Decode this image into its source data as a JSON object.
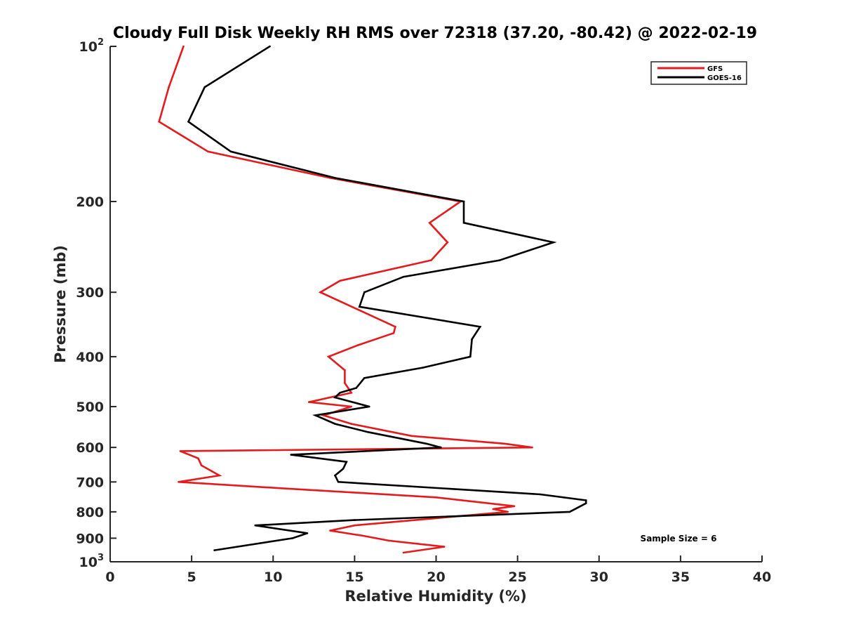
{
  "chart_data": {
    "type": "line",
    "title": "Cloudy Full Disk Weekly RH RMS over 72318 (37.20, -80.42) @ 2022-02-19",
    "xlabel": "Relative Humidity (%)",
    "ylabel": "Pressure (mb)",
    "xlim": [
      0,
      40
    ],
    "ylim": [
      100,
      1000
    ],
    "y_scale": "log",
    "y_reversed": true,
    "x_ticks": [
      "0",
      "5",
      "10",
      "15",
      "20",
      "25",
      "30",
      "35",
      "40"
    ],
    "y_ticks": [
      {
        "value": 100,
        "base": "10",
        "exp": "2"
      },
      {
        "value": 200,
        "label": "200"
      },
      {
        "value": 300,
        "label": "300"
      },
      {
        "value": 400,
        "label": "400"
      },
      {
        "value": 500,
        "label": "500"
      },
      {
        "value": 600,
        "label": "600"
      },
      {
        "value": 700,
        "label": "700"
      },
      {
        "value": 800,
        "label": "800"
      },
      {
        "value": 900,
        "label": "900"
      },
      {
        "value": 1000,
        "base": "10",
        "exp": "3"
      }
    ],
    "legend_position": "top-right",
    "annotation": "Sample Size = 6",
    "series": [
      {
        "name": "GFS",
        "color": "#e41a1c",
        "points": [
          [
            4.5,
            100
          ],
          [
            3.6,
            120
          ],
          [
            3.0,
            140
          ],
          [
            6.0,
            160
          ],
          [
            13.5,
            180
          ],
          [
            21.5,
            200
          ],
          [
            19.6,
            220
          ],
          [
            20.7,
            240
          ],
          [
            19.7,
            260
          ],
          [
            14.1,
            285
          ],
          [
            12.9,
            300
          ],
          [
            17.5,
            350
          ],
          [
            17.4,
            360
          ],
          [
            15.2,
            380
          ],
          [
            13.4,
            400
          ],
          [
            14.4,
            425
          ],
          [
            14.4,
            450
          ],
          [
            14.8,
            470
          ],
          [
            12.2,
            490
          ],
          [
            14.8,
            500
          ],
          [
            13.1,
            520
          ],
          [
            14.8,
            540
          ],
          [
            18.5,
            570
          ],
          [
            24.2,
            590
          ],
          [
            25.9,
            600
          ],
          [
            4.3,
            610
          ],
          [
            5.4,
            630
          ],
          [
            5.6,
            650
          ],
          [
            6.7,
            680
          ],
          [
            4.2,
            700
          ],
          [
            10.5,
            720
          ],
          [
            20.0,
            750
          ],
          [
            24.8,
            780
          ],
          [
            23.5,
            790
          ],
          [
            24.4,
            800
          ],
          [
            15.0,
            850
          ],
          [
            13.5,
            870
          ],
          [
            15.5,
            890
          ],
          [
            17.1,
            910
          ],
          [
            20.5,
            935
          ],
          [
            18.0,
            960
          ]
        ]
      },
      {
        "name": "GOES-16",
        "color": "#000000",
        "points": [
          [
            9.8,
            100
          ],
          [
            5.8,
            120
          ],
          [
            4.8,
            140
          ],
          [
            7.4,
            160
          ],
          [
            13.8,
            180
          ],
          [
            21.7,
            200
          ],
          [
            21.7,
            220
          ],
          [
            27.2,
            240
          ],
          [
            23.9,
            260
          ],
          [
            18.0,
            280
          ],
          [
            15.6,
            300
          ],
          [
            15.3,
            320
          ],
          [
            22.7,
            350
          ],
          [
            22.2,
            370
          ],
          [
            22.1,
            400
          ],
          [
            19.2,
            420
          ],
          [
            15.6,
            440
          ],
          [
            15.1,
            460
          ],
          [
            14.1,
            470
          ],
          [
            13.8,
            480
          ],
          [
            15.9,
            500
          ],
          [
            12.6,
            520
          ],
          [
            13.8,
            540
          ],
          [
            15.8,
            560
          ],
          [
            19.4,
            590
          ],
          [
            20.3,
            600
          ],
          [
            11.1,
            620
          ],
          [
            14.5,
            640
          ],
          [
            14.3,
            660
          ],
          [
            13.8,
            680
          ],
          [
            14.0,
            700
          ],
          [
            26.4,
            740
          ],
          [
            29.2,
            760
          ],
          [
            29.2,
            770
          ],
          [
            28.2,
            800
          ],
          [
            15.0,
            830
          ],
          [
            8.9,
            850
          ],
          [
            12.1,
            880
          ],
          [
            11.2,
            900
          ],
          [
            6.4,
            950
          ]
        ]
      }
    ]
  }
}
